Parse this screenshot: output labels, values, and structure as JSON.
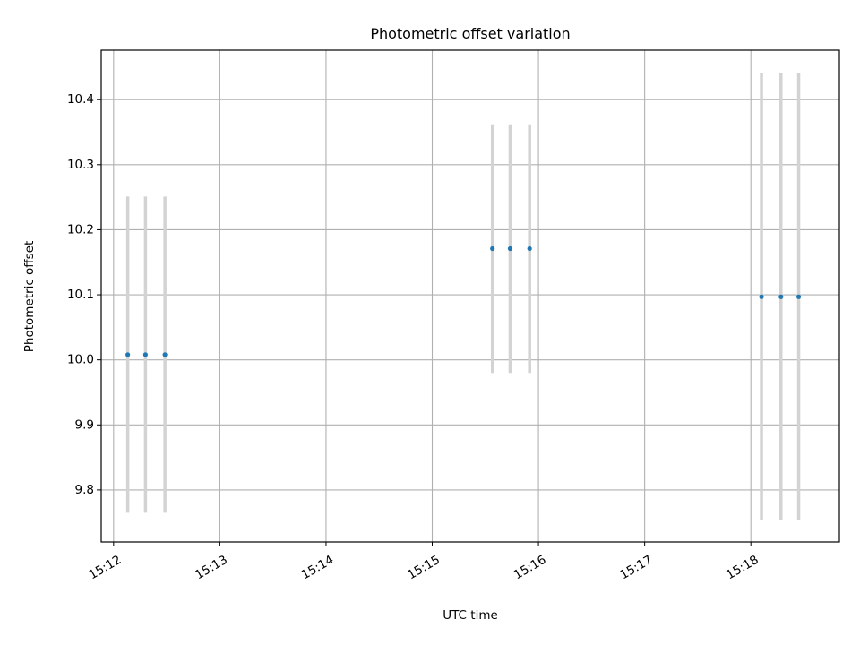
{
  "chart_data": {
    "type": "scatter",
    "title": "Photometric offset variation",
    "xlabel": "UTC time",
    "ylabel": "Photometric offset",
    "x_ticks": [
      "15:12",
      "15:13",
      "15:14",
      "15:15",
      "15:16",
      "15:17",
      "15:18"
    ],
    "y_ticks": [
      "9.8",
      "9.9",
      "10.0",
      "10.1",
      "10.2",
      "10.3",
      "10.4"
    ],
    "x_lim": [
      "15:11:53",
      "15:18:50"
    ],
    "y_lim": [
      9.72,
      10.476
    ],
    "grid": true,
    "marker_color": "#1f77b4",
    "errorbar_color": "#d3d3d3",
    "grid_color": "#b0b0b0",
    "points": [
      {
        "t": "15:12:08",
        "y": 10.008,
        "err": 0.243
      },
      {
        "t": "15:12:18",
        "y": 10.008,
        "err": 0.243
      },
      {
        "t": "15:12:29",
        "y": 10.008,
        "err": 0.243
      },
      {
        "t": "15:15:34",
        "y": 10.171,
        "err": 0.191
      },
      {
        "t": "15:15:44",
        "y": 10.171,
        "err": 0.191
      },
      {
        "t": "15:15:55",
        "y": 10.171,
        "err": 0.191
      },
      {
        "t": "15:18:06",
        "y": 10.097,
        "err": 0.344
      },
      {
        "t": "15:18:17",
        "y": 10.097,
        "err": 0.344
      },
      {
        "t": "15:18:27",
        "y": 10.097,
        "err": 0.344
      }
    ]
  }
}
